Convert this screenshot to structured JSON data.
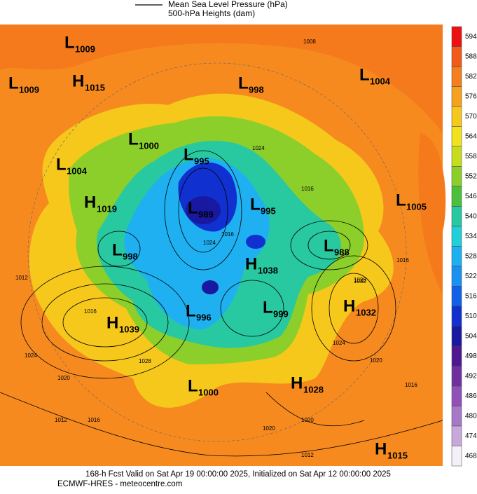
{
  "legend": {
    "line1": "Mean Sea Level Pressure (hPa)",
    "line2": "500-hPa Heights (dam)"
  },
  "colorbar": {
    "ticks": [
      594,
      588,
      582,
      576,
      570,
      564,
      558,
      552,
      546,
      540,
      534,
      528,
      522,
      516,
      510,
      504,
      498,
      492,
      486,
      480,
      474,
      468
    ],
    "colors": [
      "#ee1111",
      "#f25a1a",
      "#f57f1f",
      "#f7a21f",
      "#f6c81c",
      "#f2e21e",
      "#c8dc1e",
      "#8ccf2a",
      "#4cc03c",
      "#28c8a0",
      "#20d0d8",
      "#1eb0f0",
      "#1a90f0",
      "#1060e8",
      "#1030d0",
      "#1818a0",
      "#501890",
      "#7030a0",
      "#9050b8",
      "#a878c8",
      "#c8a8dc",
      "#f4f0f8"
    ]
  },
  "centers": [
    {
      "kind": "L",
      "value": "1009"
    },
    {
      "kind": "L",
      "value": "1009"
    },
    {
      "kind": "H",
      "value": "1015"
    },
    {
      "kind": "L",
      "value": "998"
    },
    {
      "kind": "L",
      "value": "1004"
    },
    {
      "kind": "L",
      "value": "1000"
    },
    {
      "kind": "L",
      "value": "995"
    },
    {
      "kind": "L",
      "value": "1004"
    },
    {
      "kind": "H",
      "value": "1019"
    },
    {
      "kind": "L",
      "value": "989"
    },
    {
      "kind": "L",
      "value": "995"
    },
    {
      "kind": "L",
      "value": "1005"
    },
    {
      "kind": "L",
      "value": "998"
    },
    {
      "kind": "L",
      "value": "988"
    },
    {
      "kind": "H",
      "value": "1038"
    },
    {
      "kind": "H",
      "value": "1032"
    },
    {
      "kind": "H",
      "value": "1039"
    },
    {
      "kind": "L",
      "value": "996"
    },
    {
      "kind": "L",
      "value": "999"
    },
    {
      "kind": "L",
      "value": "1000"
    },
    {
      "kind": "H",
      "value": "1028"
    },
    {
      "kind": "H",
      "value": "1015"
    }
  ],
  "contour_labels": [
    "1008",
    "1024",
    "1016",
    "1016",
    "1024",
    "1016",
    "1032",
    "1028",
    "1024",
    "1020",
    "1012",
    "1016",
    "1020",
    "1024",
    "1028",
    "1012",
    "1016",
    "1020",
    "1020",
    "1012",
    "1016"
  ],
  "footer": {
    "line1": "168-h Fcst Valid on Sat Apr 19 00:00:00 2025, Initialized on Sat Apr 12 00:00:00 2025",
    "line2": "ECMWF-HRES  - meteocentre.com"
  }
}
